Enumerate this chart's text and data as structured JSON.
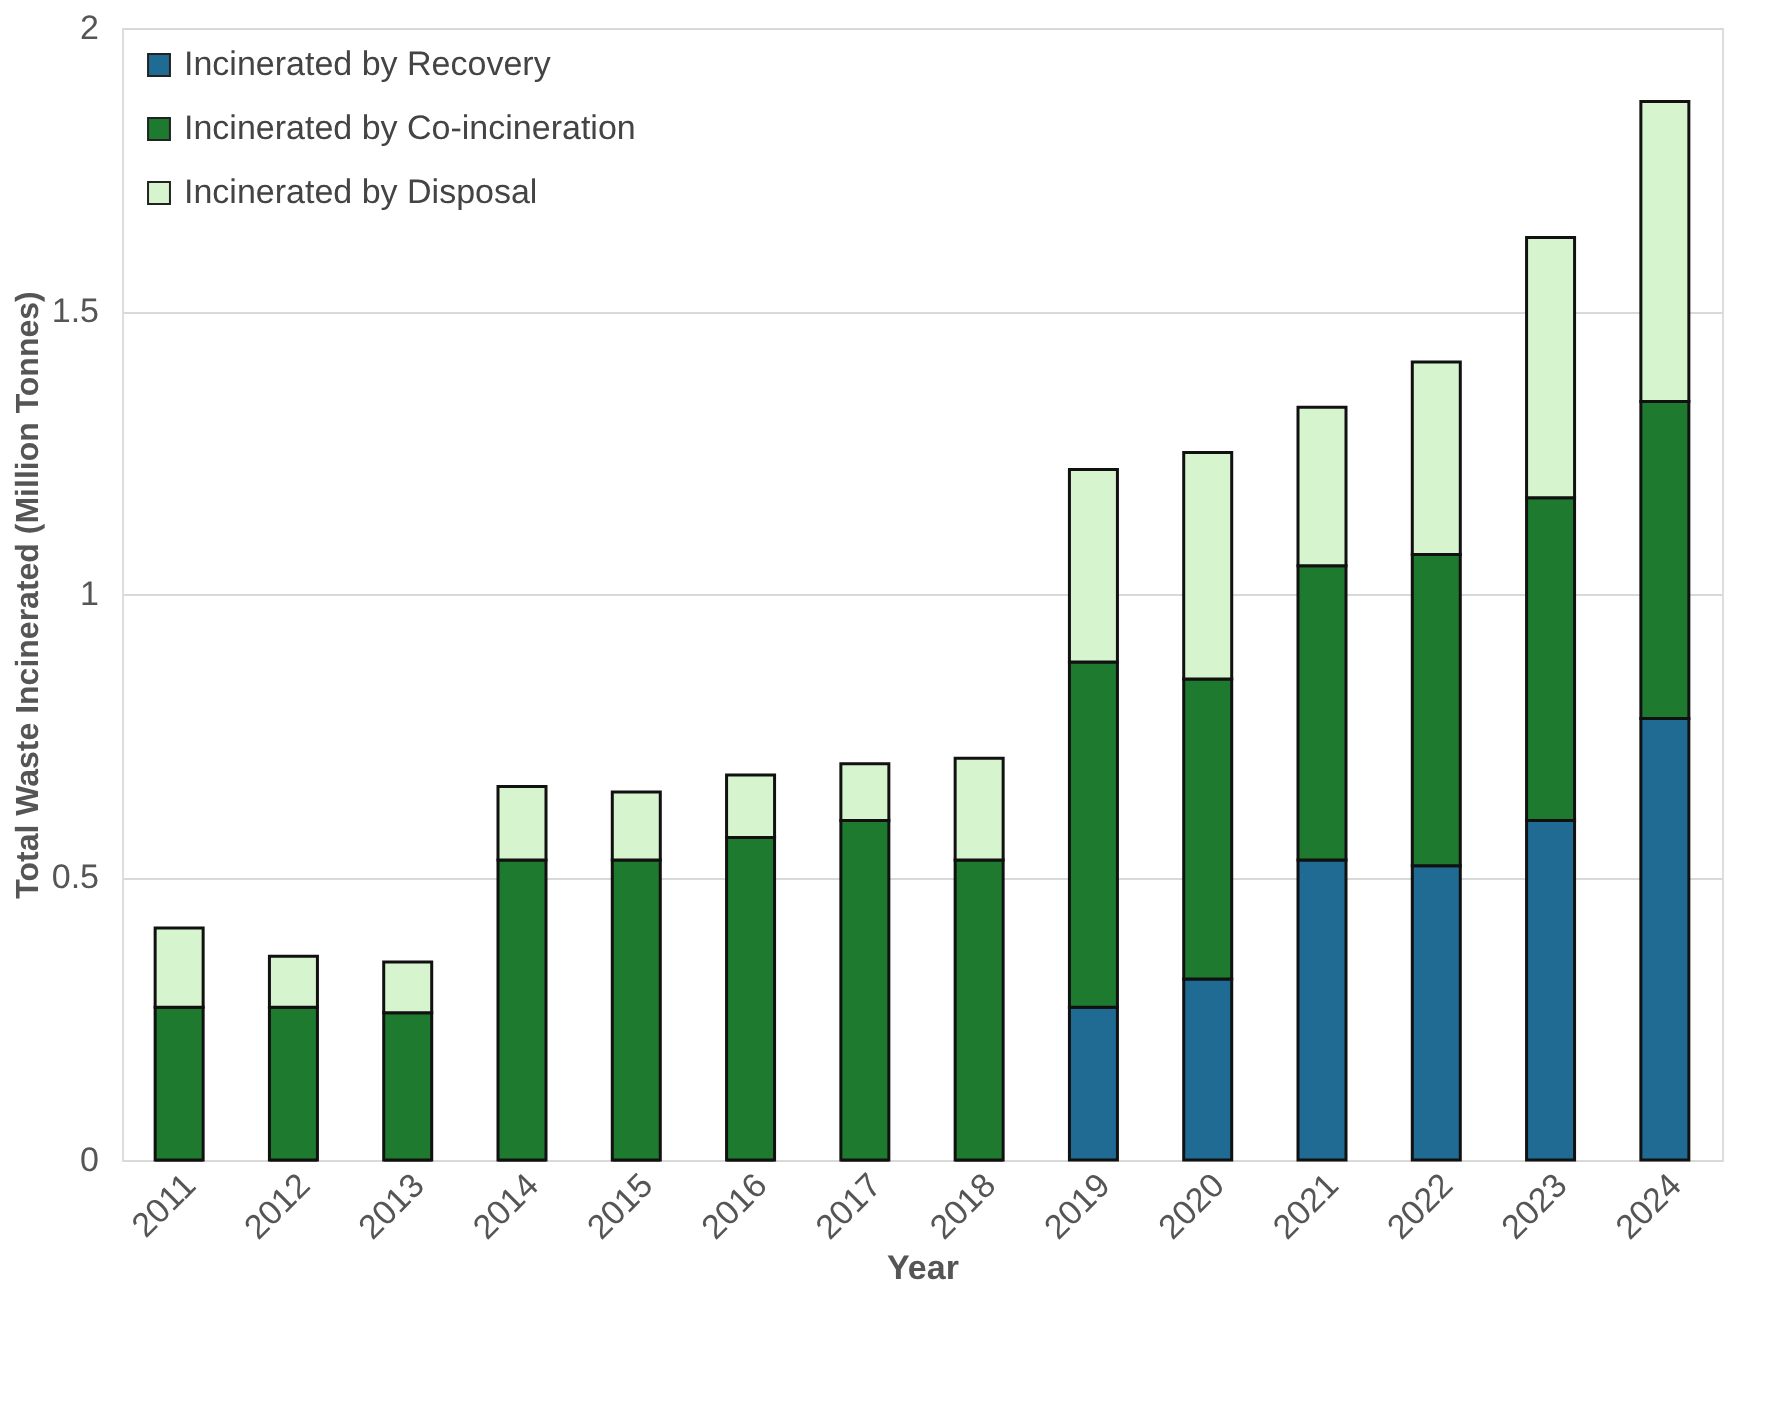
{
  "chart_data": {
    "type": "bar",
    "stacked": true,
    "xlabel": "Year",
    "ylabel": "Total Waste Incinerated (Million Tonnes)",
    "categories": [
      "2011",
      "2012",
      "2013",
      "2014",
      "2015",
      "2016",
      "2017",
      "2018",
      "2019",
      "2020",
      "2021",
      "2022",
      "2023",
      "2024"
    ],
    "series": [
      {
        "name": "Incinerated by Recovery",
        "color": "#1f6b94",
        "values": [
          0,
          0,
          0,
          0,
          0,
          0,
          0,
          0,
          0.27,
          0.32,
          0.53,
          0.52,
          0.6,
          0.78
        ]
      },
      {
        "name": "Incinerated by Co-incineration",
        "color": "#1e7a2e",
        "values": [
          0.27,
          0.27,
          0.26,
          0.53,
          0.53,
          0.57,
          0.6,
          0.53,
          0.61,
          0.53,
          0.52,
          0.55,
          0.57,
          0.56
        ]
      },
      {
        "name": "Incinerated by Disposal",
        "color": "#d6f5cf",
        "values": [
          0.14,
          0.09,
          0.09,
          0.13,
          0.12,
          0.11,
          0.1,
          0.18,
          0.34,
          0.4,
          0.28,
          0.34,
          0.46,
          0.53
        ]
      }
    ],
    "ylim": [
      0,
      2
    ],
    "yticks": [
      0,
      0.5,
      1,
      1.5,
      2
    ],
    "grid": "y",
    "legend": "top left"
  }
}
